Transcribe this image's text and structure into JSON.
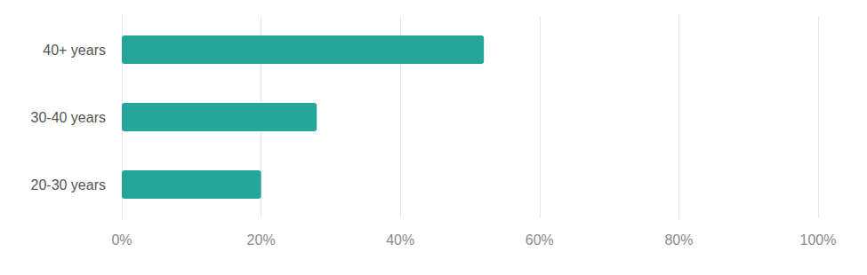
{
  "chart_data": {
    "type": "bar",
    "orientation": "horizontal",
    "categories": [
      "40+ years",
      "30-40 years",
      "20-30 years"
    ],
    "values": [
      52,
      28,
      20
    ],
    "color": "#26a69a",
    "xlim": [
      0,
      100
    ],
    "xticks": [
      {
        "value": 0,
        "label": "0%"
      },
      {
        "value": 20,
        "label": "20%"
      },
      {
        "value": 40,
        "label": "40%"
      },
      {
        "value": 60,
        "label": "60%"
      },
      {
        "value": 80,
        "label": "80%"
      },
      {
        "value": 100,
        "label": "100%"
      }
    ],
    "grid": true
  }
}
